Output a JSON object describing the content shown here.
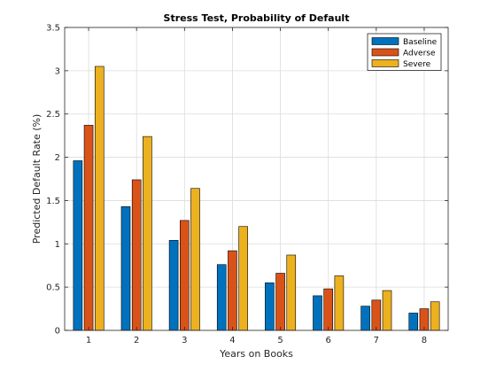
{
  "chart_data": {
    "type": "bar",
    "title": "Stress Test, Probability of Default",
    "xlabel": "Years on Books",
    "ylabel": "Predicted Default Rate (%)",
    "categories": [
      "1",
      "2",
      "3",
      "4",
      "5",
      "6",
      "7",
      "8"
    ],
    "ylim": [
      0,
      3.5
    ],
    "yticks": [
      "0",
      "0.5",
      "1",
      "1.5",
      "2",
      "2.5",
      "3",
      "3.5"
    ],
    "grid": true,
    "legend_position": "top-right",
    "series": [
      {
        "name": "Baseline",
        "color": "#0072BD",
        "values": [
          1.96,
          1.43,
          1.04,
          0.76,
          0.55,
          0.4,
          0.28,
          0.2
        ]
      },
      {
        "name": "Adverse",
        "color": "#D95319",
        "values": [
          2.37,
          1.74,
          1.27,
          0.92,
          0.66,
          0.48,
          0.35,
          0.25
        ]
      },
      {
        "name": "Severe",
        "color": "#EDB120",
        "values": [
          3.05,
          2.24,
          1.64,
          1.2,
          0.87,
          0.63,
          0.46,
          0.33
        ]
      }
    ]
  }
}
